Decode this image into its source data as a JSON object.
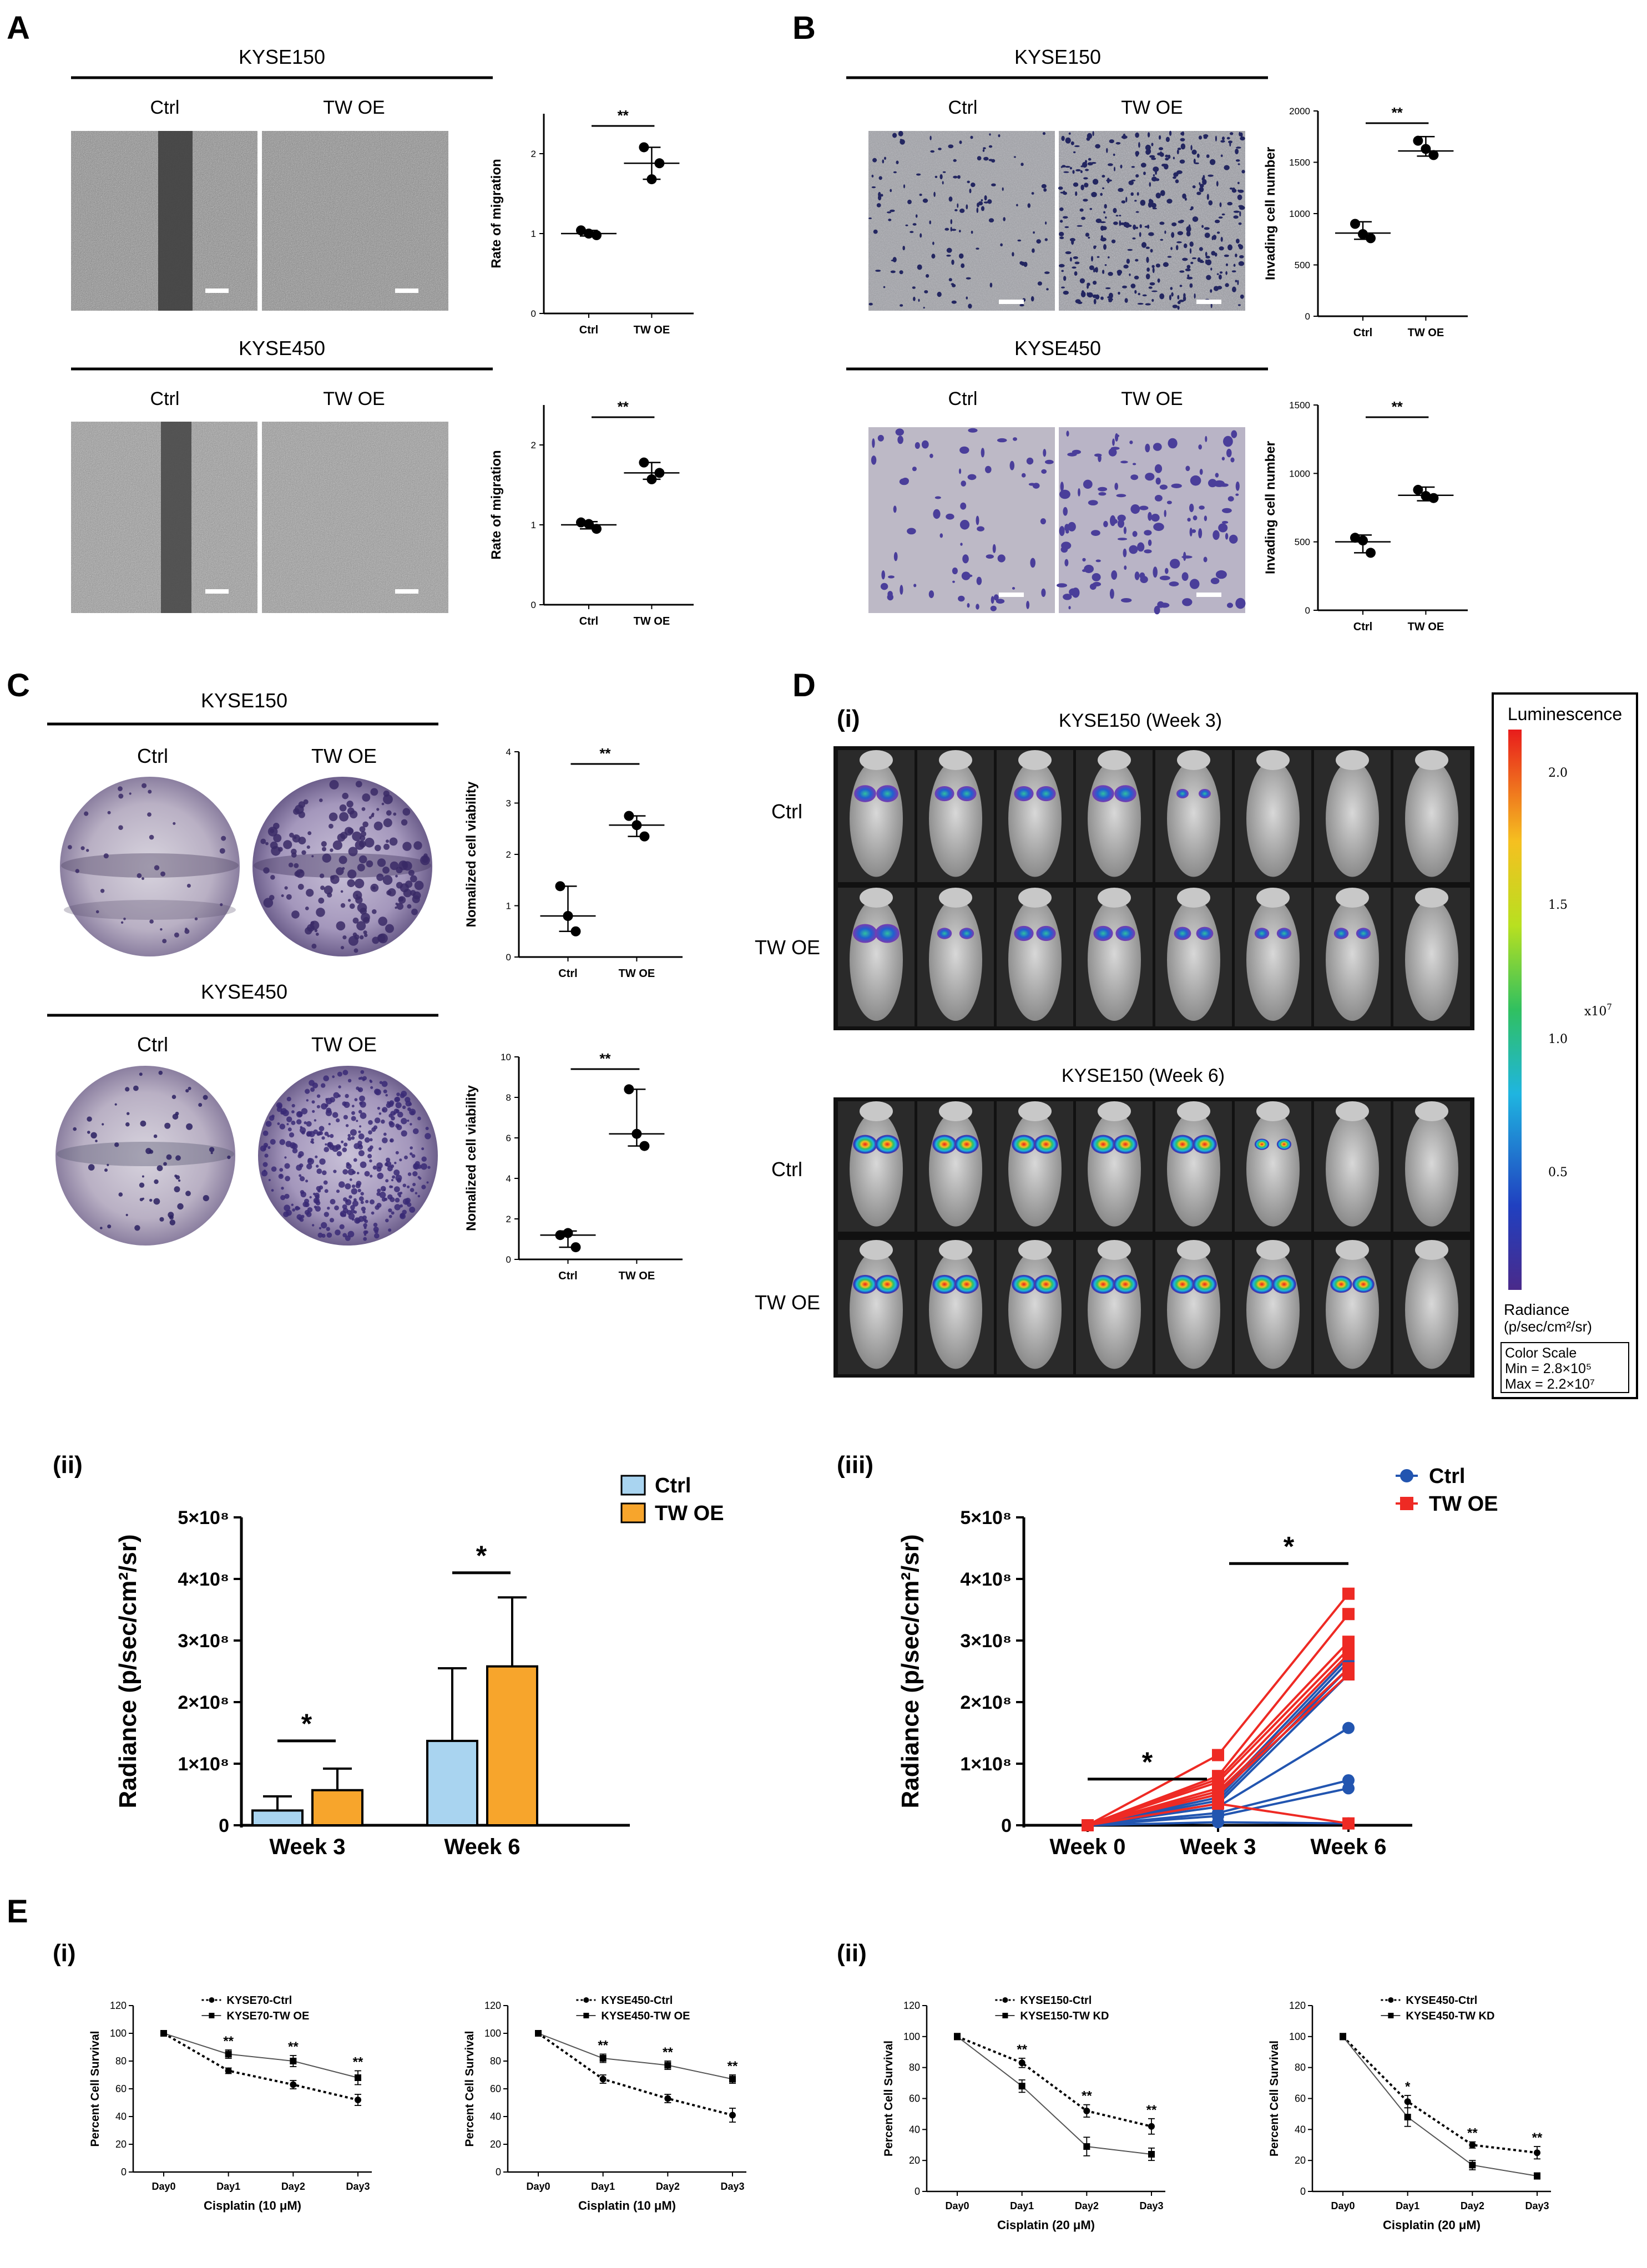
{
  "colors": {
    "ctrl_blue": "#2255b0",
    "twoe_red": "#ee2a24",
    "bar_ctrl": "#a9d4f0",
    "bar_twoe": "#f7a52c",
    "micro_gray": "#8a8a8a",
    "invade_bg": "#9fa0a6",
    "invade_dot": "#2a2d6a"
  },
  "panels": {
    "A": {
      "label": "A",
      "kyse150": {
        "title": "KYSE150",
        "col_ctrl": "Ctrl",
        "col_twoe": "TW OE"
      },
      "kyse450": {
        "title": "KYSE450",
        "col_ctrl": "Ctrl",
        "col_twoe": "TW OE"
      }
    },
    "B": {
      "label": "B",
      "kyse150": {
        "title": "KYSE150",
        "col_ctrl": "Ctrl",
        "col_twoe": "TW OE"
      },
      "kyse450": {
        "title": "KYSE450",
        "col_ctrl": "Ctrl",
        "col_twoe": "TW OE"
      }
    },
    "C": {
      "label": "C",
      "kyse150": {
        "title": "KYSE150",
        "col_ctrl": "Ctrl",
        "col_twoe": "TW OE"
      },
      "kyse450": {
        "title": "KYSE450",
        "col_ctrl": "Ctrl",
        "col_twoe": "TW OE"
      }
    },
    "D": {
      "label": "D",
      "sub_i": "(i)",
      "sub_ii": "(ii)",
      "sub_iii": "(iii)",
      "week3_title": "KYSE150 (Week 3)",
      "week6_title": "KYSE150 (Week 6)",
      "row_ctrl": "Ctrl",
      "row_twoe": "TW OE",
      "scale": {
        "title": "Luminescence",
        "ticks": [
          "2.0",
          "1.5",
          "1.0",
          "0.5"
        ],
        "exp": "x10",
        "exp_sup": "7",
        "unit_line1": "Radiance",
        "unit_line2": "(p/sec/cm²/sr)",
        "cs_title": "Color Scale",
        "cs_min": "Min = 2.8×10⁵",
        "cs_max": "Max = 2.2×10⁷"
      }
    },
    "E": {
      "label": "E",
      "sub_i": "(i)",
      "sub_ii": "(ii)"
    }
  },
  "chart_data": [
    {
      "id": "A1",
      "type": "scatter",
      "ylabel": "Rate of migration",
      "categories": [
        "Ctrl",
        "TW OE"
      ],
      "ylim": [
        0,
        2.5
      ],
      "yticks": [
        "0",
        "1",
        "2"
      ],
      "yticks_values": [
        0,
        1,
        2
      ],
      "points": [
        [
          1.04,
          0.98,
          1.0
        ],
        [
          2.08,
          1.88,
          1.68
        ]
      ],
      "center": [
        1.0,
        1.88
      ],
      "err": [
        [
          0.97,
          1.04
        ],
        [
          1.68,
          2.08
        ]
      ],
      "sig": "**"
    },
    {
      "id": "A2",
      "type": "scatter",
      "ylabel": "Rate of migration",
      "categories": [
        "Ctrl",
        "TW OE"
      ],
      "ylim": [
        0,
        2.5
      ],
      "yticks": [
        "0",
        "1",
        "2"
      ],
      "yticks_values": [
        0,
        1,
        2
      ],
      "points": [
        [
          1.03,
          0.95,
          1.01
        ],
        [
          1.78,
          1.65,
          1.57
        ]
      ],
      "center": [
        1.0,
        1.65
      ],
      "err": [
        [
          0.95,
          1.04
        ],
        [
          1.57,
          1.78
        ]
      ],
      "sig": "**"
    },
    {
      "id": "B1",
      "type": "scatter",
      "ylabel": "Invading cell number",
      "categories": [
        "Ctrl",
        "TW OE"
      ],
      "ylim": [
        0,
        2000
      ],
      "yticks": [
        "0",
        "500",
        "1000",
        "1500",
        "2000"
      ],
      "yticks_values": [
        0,
        500,
        1000,
        1500,
        2000
      ],
      "points": [
        [
          900,
          760,
          800
        ],
        [
          1710,
          1570,
          1630
        ]
      ],
      "center": [
        810,
        1610
      ],
      "err": [
        [
          750,
          920
        ],
        [
          1560,
          1750
        ]
      ],
      "sig": "**"
    },
    {
      "id": "B2",
      "type": "scatter",
      "ylabel": "Invading cell number",
      "categories": [
        "Ctrl",
        "TW OE"
      ],
      "ylim": [
        0,
        1500
      ],
      "yticks": [
        "0",
        "500",
        "1000",
        "1500"
      ],
      "yticks_values": [
        0,
        500,
        1000,
        1500
      ],
      "points": [
        [
          530,
          420,
          510
        ],
        [
          880,
          820,
          835
        ]
      ],
      "center": [
        500,
        840
      ],
      "err": [
        [
          420,
          550
        ],
        [
          800,
          900
        ]
      ],
      "sig": "**"
    },
    {
      "id": "C1",
      "type": "scatter",
      "ylabel": "Nomalized cell viability",
      "categories": [
        "Ctrl",
        "TW OE"
      ],
      "ylim": [
        0,
        4
      ],
      "yticks": [
        "0",
        "1",
        "2",
        "3",
        "4"
      ],
      "yticks_values": [
        0,
        1,
        2,
        3,
        4
      ],
      "points": [
        [
          1.38,
          0.5,
          0.8
        ],
        [
          2.75,
          2.35,
          2.57
        ]
      ],
      "center": [
        0.8,
        2.57
      ],
      "err": [
        [
          0.5,
          1.38
        ],
        [
          2.35,
          2.75
        ]
      ],
      "sig": "**"
    },
    {
      "id": "C2",
      "type": "scatter",
      "ylabel": "Nomalized cell viability",
      "categories": [
        "Ctrl",
        "TW OE"
      ],
      "ylim": [
        0,
        10
      ],
      "yticks": [
        "0",
        "2",
        "4",
        "6",
        "8",
        "10"
      ],
      "yticks_values": [
        0,
        2,
        4,
        6,
        8,
        10
      ],
      "points": [
        [
          1.2,
          0.6,
          1.3
        ],
        [
          8.4,
          5.6,
          6.2
        ]
      ],
      "center": [
        1.2,
        6.2
      ],
      "err": [
        [
          0.6,
          1.4
        ],
        [
          5.6,
          8.4
        ]
      ],
      "sig": "**"
    },
    {
      "id": "Dii",
      "type": "bar",
      "ylabel": "Radiance (p/sec/cm²/sr)",
      "categories": [
        "Week 3",
        "Week 6"
      ],
      "yticks": [
        "0",
        "1×10⁸",
        "2×10⁸",
        "3×10⁸",
        "4×10⁸",
        "5×10⁸"
      ],
      "yticks_values": [
        0,
        1,
        2,
        3,
        4,
        5
      ],
      "ylim": [
        0,
        5
      ],
      "series": [
        {
          "name": "Ctrl",
          "values": [
            0.24,
            1.37
          ],
          "errors": [
            0.23,
            1.18
          ]
        },
        {
          "name": "TW OE",
          "values": [
            0.57,
            2.58
          ],
          "errors": [
            0.35,
            1.12
          ]
        }
      ],
      "sig": [
        "*",
        "*"
      ]
    },
    {
      "id": "Diii",
      "type": "line",
      "ylabel": "Radiance (p/sec/cm²/sr)",
      "categories": [
        "Week 0",
        "Week 3",
        "Week 6"
      ],
      "yticks": [
        "0",
        "1×10⁸",
        "2×10⁸",
        "3×10⁸",
        "4×10⁸",
        "5×10⁸"
      ],
      "yticks_values": [
        0,
        1,
        2,
        3,
        4,
        5
      ],
      "ylim": [
        0,
        5
      ],
      "series": [
        {
          "name": "Ctrl",
          "lines": [
            [
              0,
              0.5,
              2.73
            ],
            [
              0,
              0.45,
              2.66
            ],
            [
              0,
              0.4,
              2.55
            ],
            [
              0,
              0.35,
              2.45
            ],
            [
              0,
              0.3,
              1.58
            ],
            [
              0,
              0.2,
              0.73
            ],
            [
              0,
              0.15,
              0.6
            ],
            [
              0,
              0.05,
              0.03
            ]
          ]
        },
        {
          "name": "TW OE",
          "lines": [
            [
              0,
              1.14,
              3.76
            ],
            [
              0,
              0.8,
              3.43
            ],
            [
              0,
              0.75,
              2.98
            ],
            [
              0,
              0.7,
              2.86
            ],
            [
              0,
              0.6,
              2.78
            ],
            [
              0,
              0.55,
              2.55
            ],
            [
              0,
              0.5,
              2.45
            ],
            [
              0,
              0.35,
              0.03
            ]
          ]
        }
      ],
      "sig": [
        "*",
        "*"
      ]
    },
    {
      "id": "Ei1",
      "type": "line",
      "ylabel": "Percent Cell Survival",
      "xlabel": "Cisplatin (10 μM)",
      "categories": [
        "Day0",
        "Day1",
        "Day2",
        "Day3"
      ],
      "ylim": [
        0,
        120
      ],
      "yticks": [
        "0",
        "20",
        "40",
        "60",
        "80",
        "100",
        "120"
      ],
      "yticks_values": [
        0,
        20,
        40,
        60,
        80,
        100,
        120
      ],
      "series": [
        {
          "name": "KYSE70-Ctrl",
          "values": [
            100,
            73,
            63,
            52
          ],
          "errors": [
            2,
            2,
            3,
            4
          ],
          "dashed": true
        },
        {
          "name": "KYSE70-TW OE",
          "values": [
            100,
            85,
            80,
            68
          ],
          "errors": [
            2,
            3,
            4,
            5
          ],
          "dashed": false
        }
      ],
      "sig": [
        "",
        "**",
        "**",
        "**"
      ]
    },
    {
      "id": "Ei2",
      "type": "line",
      "ylabel": "Percent Cell Survival",
      "xlabel": "Cisplatin (10 μM)",
      "categories": [
        "Day0",
        "Day1",
        "Day2",
        "Day3"
      ],
      "ylim": [
        0,
        120
      ],
      "yticks": [
        "0",
        "20",
        "40",
        "60",
        "80",
        "100",
        "120"
      ],
      "yticks_values": [
        0,
        20,
        40,
        60,
        80,
        100,
        120
      ],
      "series": [
        {
          "name": "KYSE450-Ctrl",
          "values": [
            100,
            67,
            53,
            41
          ],
          "errors": [
            2,
            3,
            3,
            5
          ],
          "dashed": true
        },
        {
          "name": "KYSE450-TW OE",
          "values": [
            100,
            82,
            77,
            67
          ],
          "errors": [
            2,
            3,
            3,
            3
          ],
          "dashed": false
        }
      ],
      "sig": [
        "",
        "**",
        "**",
        "**"
      ]
    },
    {
      "id": "Eii1",
      "type": "line",
      "ylabel": "Percent Cell Survival",
      "xlabel": "Cisplatin (20 μM)",
      "categories": [
        "Day0",
        "Day1",
        "Day2",
        "Day3"
      ],
      "ylim": [
        0,
        120
      ],
      "yticks": [
        "0",
        "20",
        "40",
        "60",
        "80",
        "100",
        "120"
      ],
      "yticks_values": [
        0,
        20,
        40,
        60,
        80,
        100,
        120
      ],
      "series": [
        {
          "name": "KYSE150-Ctrl",
          "values": [
            100,
            83,
            52,
            42
          ],
          "errors": [
            2,
            3,
            4,
            5
          ],
          "dashed": true
        },
        {
          "name": "KYSE150-TW KD",
          "values": [
            100,
            68,
            29,
            24
          ],
          "errors": [
            2,
            4,
            6,
            4
          ],
          "dashed": false
        }
      ],
      "sig": [
        "",
        "**",
        "**",
        "**"
      ]
    },
    {
      "id": "Eii2",
      "type": "line",
      "ylabel": "Percent Cell Survival",
      "xlabel": "Cisplatin (20 μM)",
      "categories": [
        "Day0",
        "Day1",
        "Day2",
        "Day3"
      ],
      "ylim": [
        0,
        120
      ],
      "yticks": [
        "0",
        "20",
        "40",
        "60",
        "80",
        "100",
        "120"
      ],
      "yticks_values": [
        0,
        20,
        40,
        60,
        80,
        100,
        120
      ],
      "series": [
        {
          "name": "KYSE450-Ctrl",
          "values": [
            100,
            58,
            30,
            25
          ],
          "errors": [
            2,
            4,
            2,
            4
          ],
          "dashed": true
        },
        {
          "name": "KYSE450-TW KD",
          "values": [
            100,
            48,
            17,
            10
          ],
          "errors": [
            2,
            6,
            3,
            2
          ],
          "dashed": false
        }
      ],
      "sig": [
        "",
        "*",
        "**",
        "**"
      ]
    }
  ]
}
